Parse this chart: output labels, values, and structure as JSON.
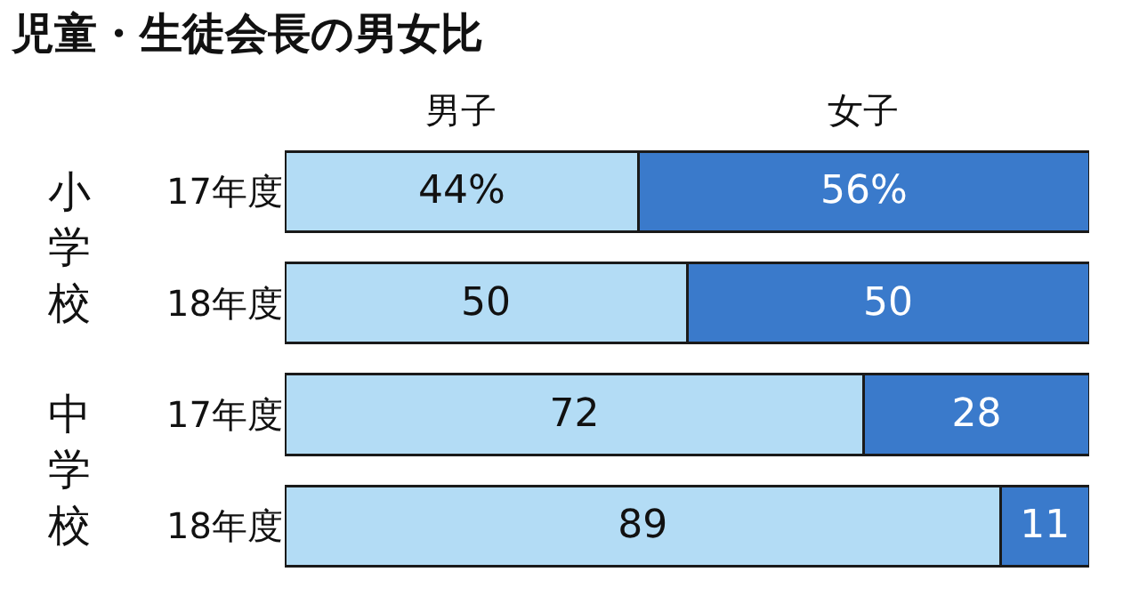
{
  "chart_data": {
    "type": "bar",
    "orientation": "horizontal",
    "stacked": true,
    "title": "児童・生徒会長の男女比",
    "categories": [
      "17年度",
      "18年度",
      "17年度",
      "18年度"
    ],
    "series": [
      {
        "name": "男子",
        "color": "#b3dcf5",
        "values": [
          44,
          50,
          72,
          89
        ],
        "value_labels": [
          "44%",
          "50",
          "72",
          "89"
        ]
      },
      {
        "name": "女子",
        "color": "#3a7acb",
        "values": [
          56,
          50,
          28,
          11
        ],
        "value_labels": [
          "56%",
          "50",
          "28",
          "11"
        ]
      }
    ],
    "annotations": [
      "小学校",
      "中学校"
    ],
    "legend": false
  }
}
